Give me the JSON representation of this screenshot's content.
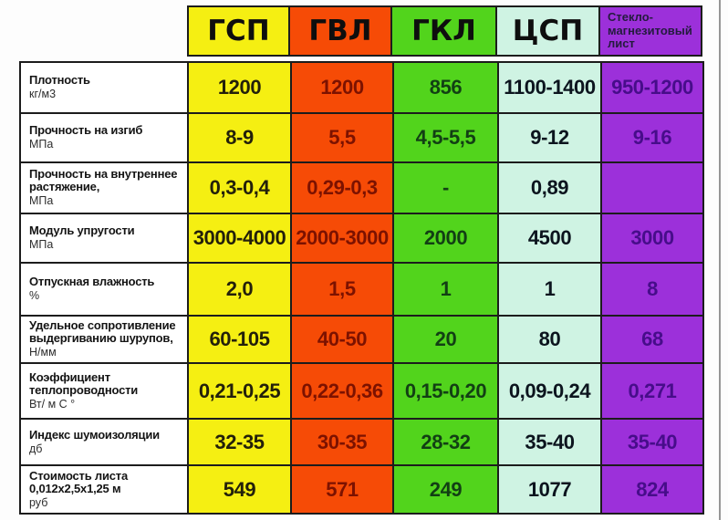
{
  "chart_data": {
    "type": "table",
    "columns": [
      {
        "label": "ГСП",
        "color": "#f5ef12",
        "text_color": "#23200a"
      },
      {
        "label": "ГВЛ",
        "color": "#f64b06",
        "text_color": "#7c1200"
      },
      {
        "label": "ГКЛ",
        "color": "#52d41c",
        "text_color": "#123f14"
      },
      {
        "label": "ЦСП",
        "color": "#cff3e3",
        "text_color": "#0c141e"
      },
      {
        "label": "Стекло-магнезитовый лист",
        "color": "#9c30da",
        "text_color": "#470d8a"
      }
    ],
    "rows": [
      {
        "title": "Плотность",
        "unit": "кг/м3",
        "values": [
          "1200",
          "1200",
          "856",
          "1100-1400",
          "950-1200"
        ]
      },
      {
        "title": "Прочность на изгиб",
        "unit": "МПа",
        "values": [
          "8-9",
          "5,5",
          "4,5-5,5",
          "9-12",
          "9-16"
        ]
      },
      {
        "title": "Прочность на внутреннее растяжение,",
        "unit": "МПа",
        "values": [
          "0,3-0,4",
          "0,29-0,3",
          "-",
          "0,89",
          ""
        ]
      },
      {
        "title": "Модуль упругости",
        "unit": "МПа",
        "values": [
          "3000-4000",
          "2000-3000",
          "2000",
          "4500",
          "3000"
        ]
      },
      {
        "title": "Отпускная влажность",
        "unit": "%",
        "values": [
          "2,0",
          "1,5",
          "1",
          "1",
          "8"
        ]
      },
      {
        "title": "Удельное сопротивление выдергиванию шурупов,",
        "unit": "Н/мм",
        "values": [
          "60-105",
          "40-50",
          "20",
          "80",
          "68"
        ]
      },
      {
        "title": "Коэффициент теплопроводности",
        "unit": "Вт/ м С °",
        "values": [
          "0,21-0,25",
          "0,22-0,36",
          "0,15-0,20",
          "0,09-0,24",
          "0,271"
        ]
      },
      {
        "title": "Индекс шумоизоляции",
        "unit": "дб",
        "values": [
          "32-35",
          "30-35",
          "28-32",
          "35-40",
          "35-40"
        ]
      },
      {
        "title": "Стоимость листа 0,012х2,5х1,25 м",
        "unit": "руб",
        "values": [
          "549",
          "571",
          "249",
          "1077",
          "824"
        ]
      }
    ],
    "border_color": "#1c1c1c",
    "background": "#fdfdfd"
  }
}
